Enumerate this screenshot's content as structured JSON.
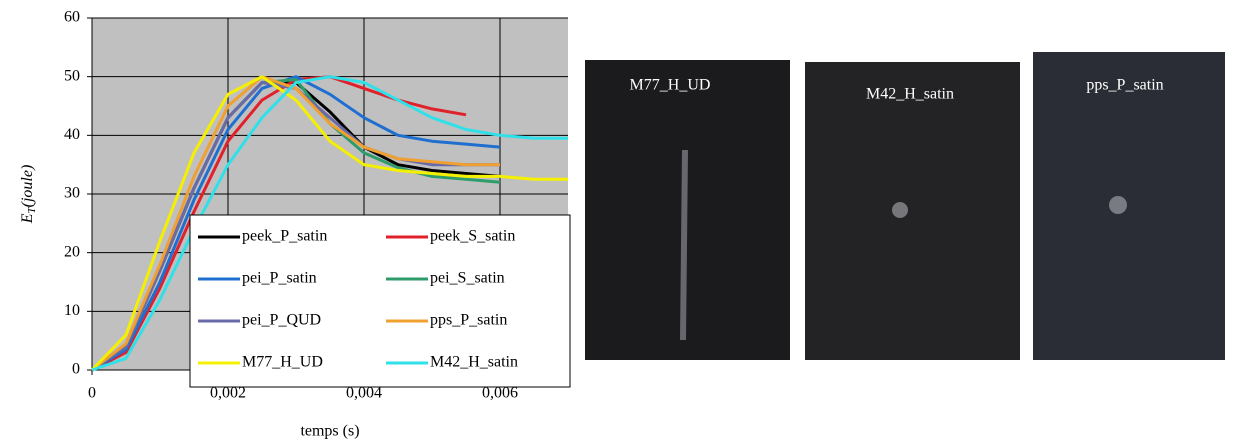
{
  "chart_data": {
    "type": "line",
    "x_label": "temps (s)",
    "y_label_main": "E",
    "y_label_sub": "T",
    "y_label_unit": "(joule)",
    "x": [
      0,
      0.0005,
      0.001,
      0.0015,
      0.002,
      0.0025,
      0.003,
      0.0035,
      0.004,
      0.0045,
      0.005,
      0.0055,
      0.006,
      0.0065,
      0.007
    ],
    "xlim": [
      0,
      0.007
    ],
    "xticks": [
      0,
      {
        "value": 0.002,
        "label": "0,002"
      },
      {
        "value": 0.004,
        "label": "0,004"
      },
      {
        "value": 0.006,
        "label": "0,006"
      }
    ],
    "ylim": [
      0,
      60
    ],
    "yticks": [
      0,
      10,
      20,
      30,
      40,
      50,
      60
    ],
    "grid": true,
    "series": [
      {
        "name": "peek_P_satin",
        "color": "#000000",
        "values": [
          0,
          4,
          17,
          31,
          43,
          49,
          49,
          44,
          38,
          35,
          34,
          33.5,
          33,
          null,
          null
        ]
      },
      {
        "name": "peek_S_satin",
        "color": "#e0202a",
        "values": [
          0,
          3,
          14,
          27,
          39,
          46,
          49.5,
          50,
          48,
          46,
          44.5,
          43.5,
          null,
          null,
          null
        ]
      },
      {
        "name": "pei_P_satin",
        "color": "#1f6fd0",
        "values": [
          0,
          3.5,
          15,
          29,
          41,
          48,
          50,
          47,
          43,
          40,
          39,
          38.5,
          38,
          null,
          null
        ]
      },
      {
        "name": "pei_S_satin",
        "color": "#2e9b6a",
        "values": [
          0,
          4,
          17,
          31,
          43,
          49,
          49.5,
          42,
          37,
          34.5,
          33,
          32.5,
          32,
          null,
          null
        ]
      },
      {
        "name": "pei_P_QUD",
        "color": "#6a6aa8",
        "values": [
          0,
          4,
          17,
          31,
          43,
          49,
          48,
          43,
          38,
          36,
          35,
          35,
          35,
          null,
          null
        ]
      },
      {
        "name": "pps_P_satin",
        "color": "#f0a030",
        "values": [
          0,
          4.5,
          18,
          33,
          45,
          50,
          48,
          42,
          38,
          36,
          35.5,
          35,
          35,
          null,
          null
        ]
      },
      {
        "name": "M77_H_UD",
        "color": "#f5f000",
        "values": [
          0,
          6,
          22,
          37,
          47,
          50,
          46,
          39,
          35,
          34,
          33.5,
          33,
          33,
          32.5,
          32.5
        ]
      },
      {
        "name": "M42_H_satin",
        "color": "#30e0e8",
        "values": [
          0,
          2,
          12,
          24,
          35,
          43,
          49,
          50,
          49,
          46,
          43,
          41,
          40,
          39.5,
          39.5
        ]
      }
    ]
  },
  "photos": [
    {
      "label": "M77_H_UD"
    },
    {
      "label": "M42_H_satin"
    },
    {
      "label": "pps_P_satin"
    }
  ]
}
